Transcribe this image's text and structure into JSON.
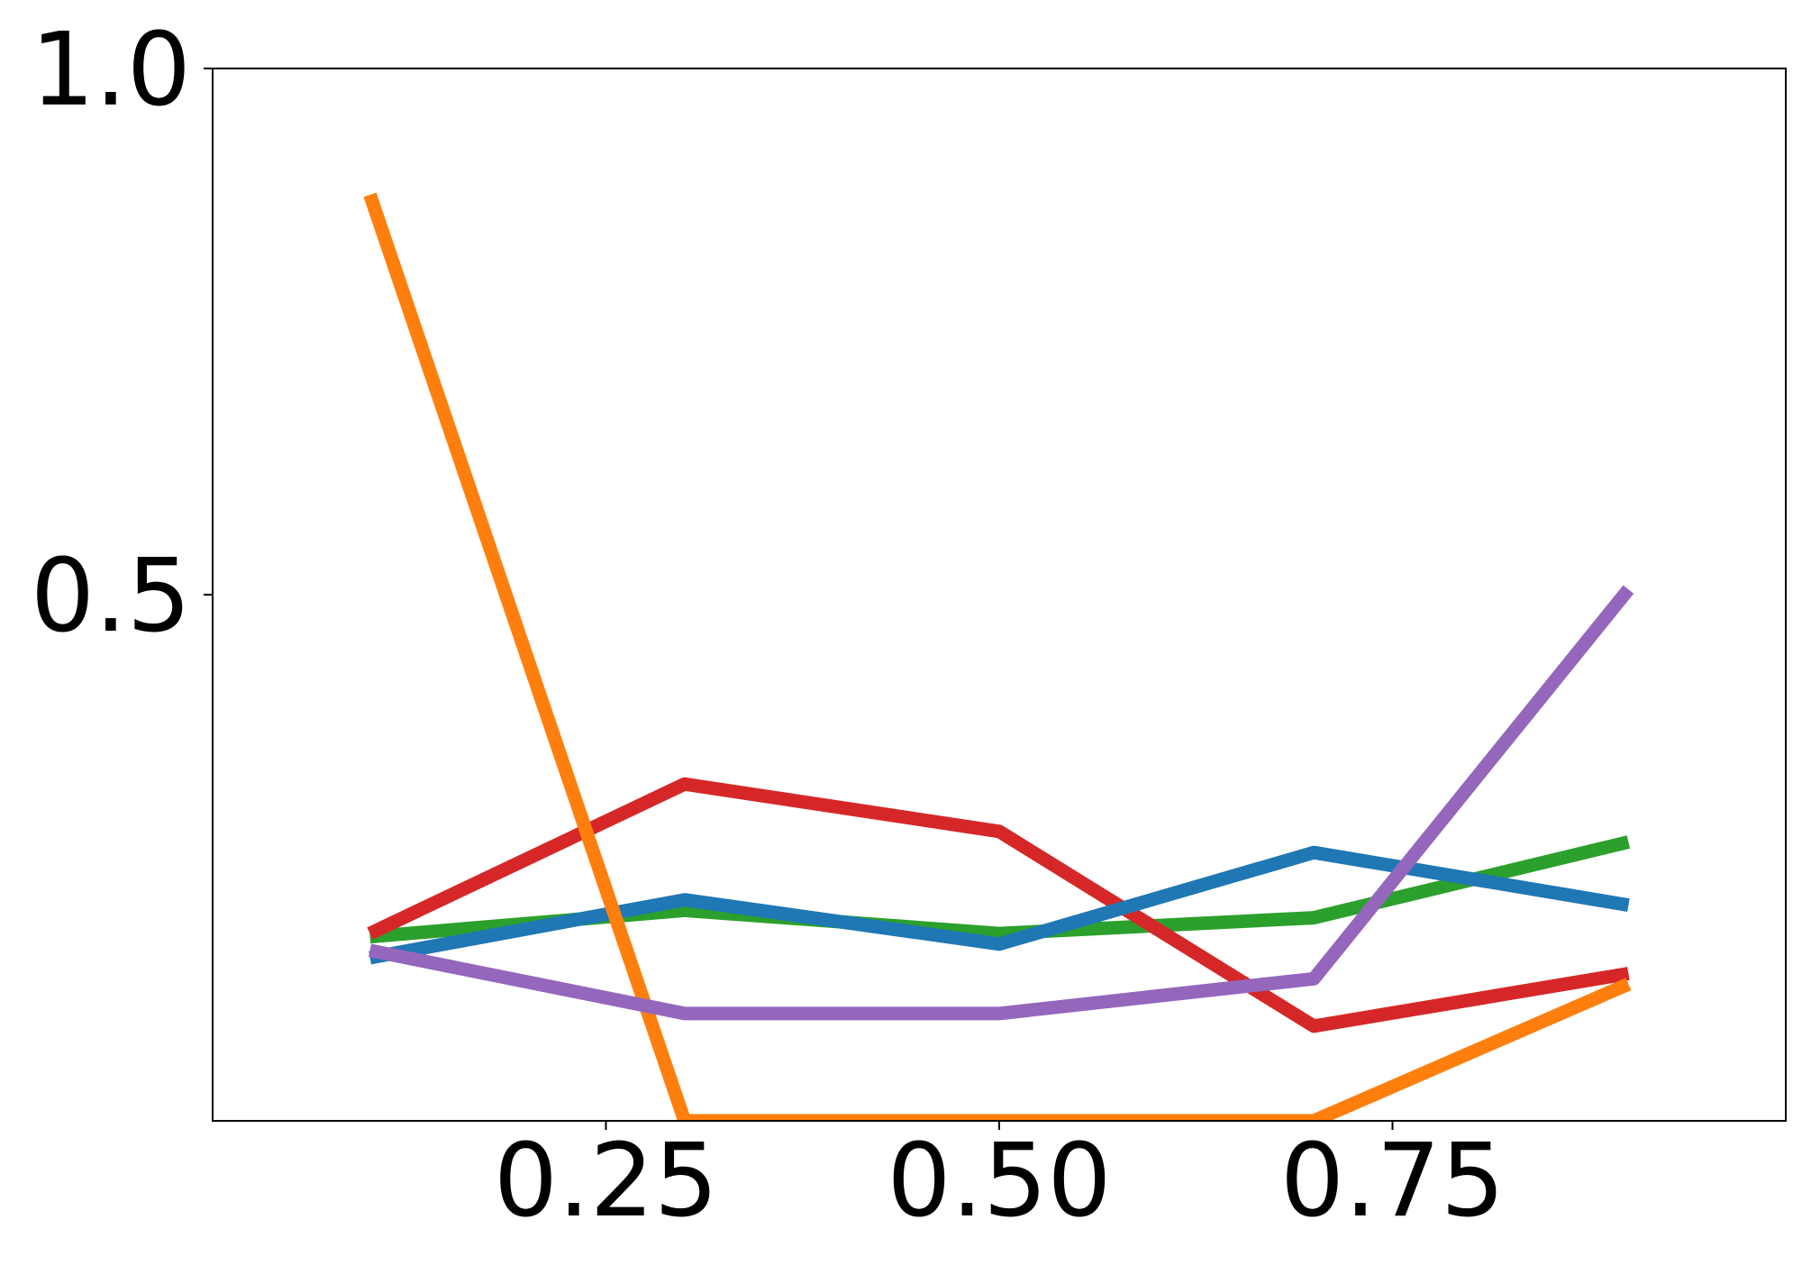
{
  "chart_data": {
    "type": "line",
    "x": [
      0.1,
      0.3,
      0.5,
      0.7,
      0.9
    ],
    "xlim": [
      -0.0,
      1.0
    ],
    "ylim": [
      0.0,
      1.0
    ],
    "x_ticks": [
      0.25,
      0.5,
      0.75
    ],
    "x_tick_labels": [
      "0.25",
      "0.50",
      "0.75"
    ],
    "y_ticks": [
      0.5,
      1.0
    ],
    "y_tick_labels": [
      "0.5",
      "1.0"
    ],
    "grid": false,
    "legend": "none",
    "series": [
      {
        "color": "#2ca02c",
        "values": [
          0.175,
          0.2,
          0.178,
          0.193,
          0.265
        ]
      },
      {
        "color": "#d62728",
        "values": [
          0.178,
          0.32,
          0.275,
          0.09,
          0.14
        ]
      },
      {
        "color": "#1f77b4",
        "values": [
          0.155,
          0.21,
          0.168,
          0.255,
          0.205
        ]
      },
      {
        "color": "#ff7f0e",
        "values": [
          0.88,
          0.0,
          0.0,
          0.0,
          0.13
        ]
      },
      {
        "color": "#9467bd",
        "values": [
          0.162,
          0.102,
          0.102,
          0.135,
          0.505
        ]
      }
    ]
  }
}
